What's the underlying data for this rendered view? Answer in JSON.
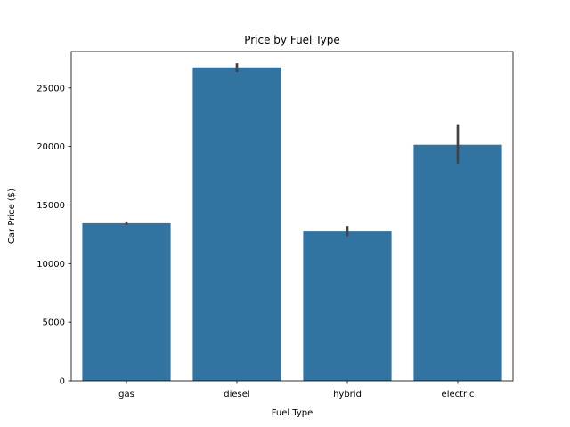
{
  "chart_data": {
    "type": "bar",
    "title": "Price by Fuel Type",
    "xlabel": "Fuel Type",
    "ylabel": "Car Price ($)",
    "categories": [
      "gas",
      "diesel",
      "hybrid",
      "electric"
    ],
    "values": [
      13450,
      26750,
      12750,
      20150
    ],
    "error_low": [
      13300,
      26350,
      12350,
      18550
    ],
    "error_high": [
      13600,
      27100,
      13200,
      21900
    ],
    "ylim": [
      0,
      28100
    ],
    "yticks": [
      0,
      5000,
      10000,
      15000,
      20000,
      25000
    ],
    "grid": false,
    "colors": {
      "bar": "#3274a1",
      "error_bar": "#424242"
    }
  }
}
